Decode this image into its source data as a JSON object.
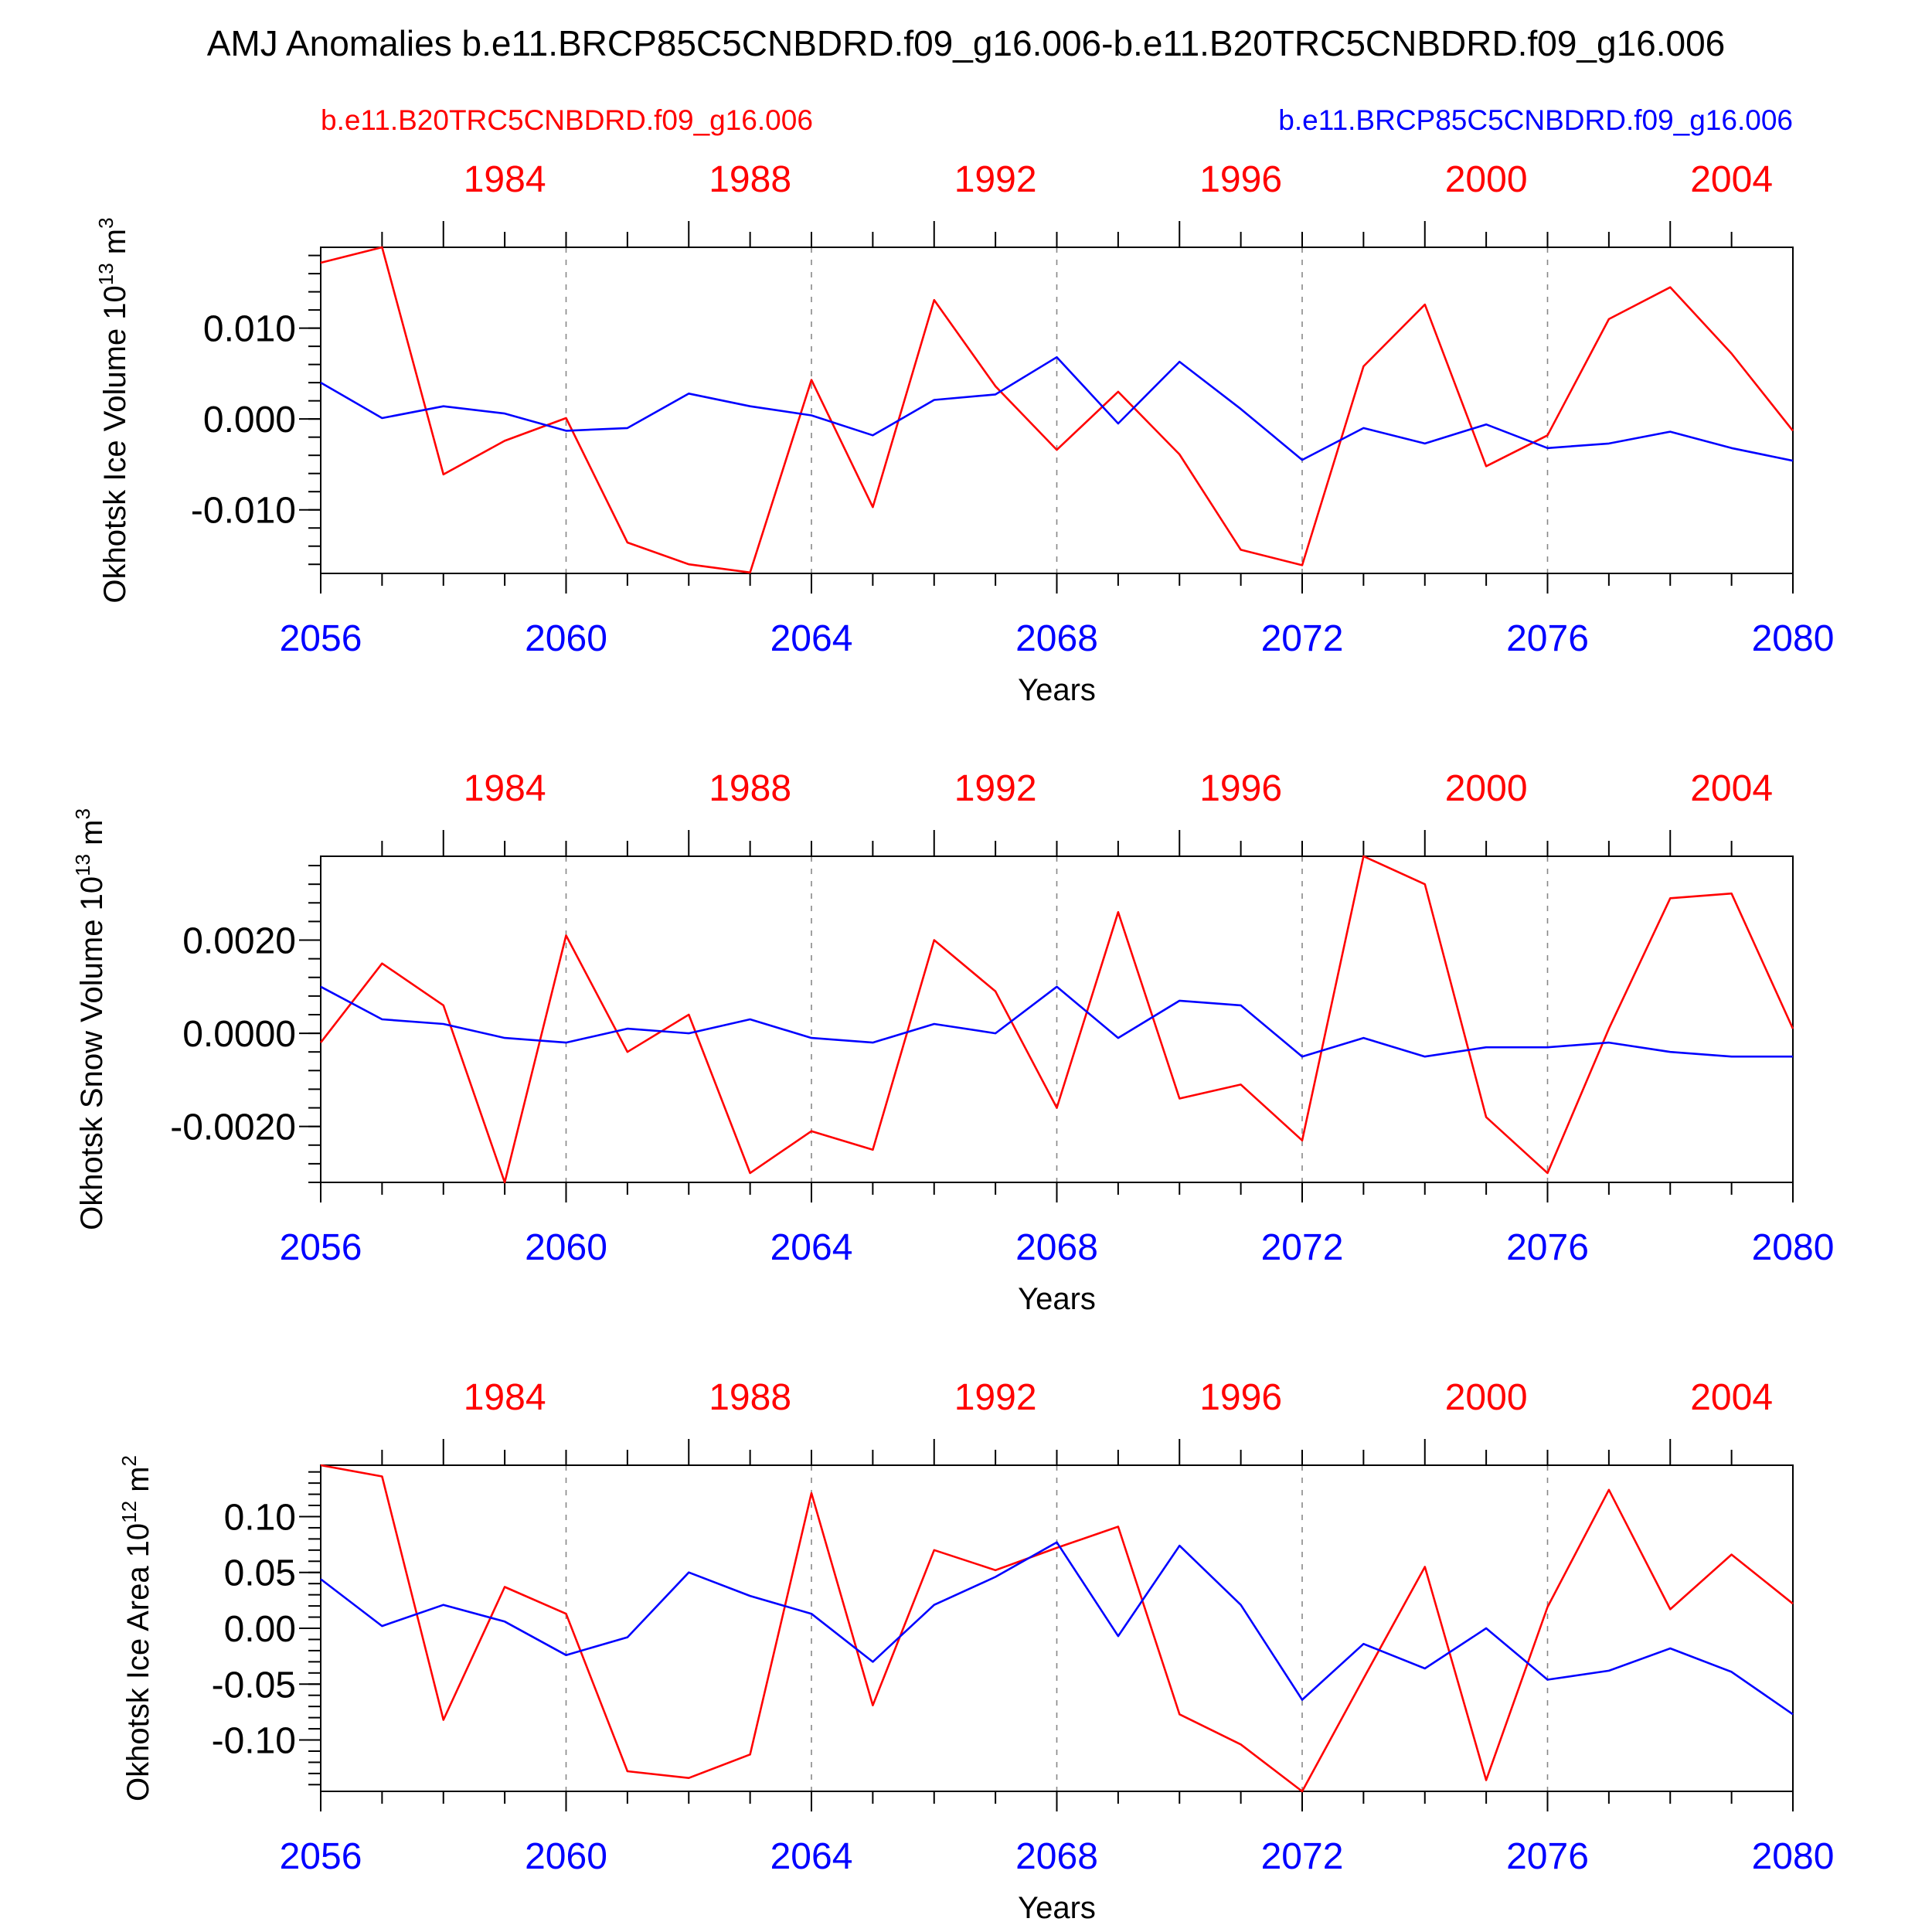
{
  "title": "AMJ Anomalies b.e11.BRCP85C5CNBDRD.f09_g16.006-b.e11.B20TRC5CNBDRD.f09_g16.006",
  "legend": {
    "left": "b.e11.B20TRC5CNBDRD.f09_g16.006",
    "right": "b.e11.BRCP85C5CNBDRD.f09_g16.006"
  },
  "colors": {
    "historical": "#ff0000",
    "future": "#0000ff",
    "text": "#000000",
    "grid": "#888888"
  },
  "chart_data": [
    {
      "type": "line",
      "ylabel": "Okhotsk Ice Volume 10",
      "ylabel_exp": "13",
      "ylabel_unit": " m",
      "ylabel_unit_exp": "3",
      "xlabel": "Years",
      "xlim": [
        2056,
        2080
      ],
      "ylim": [
        -0.017,
        0.0189
      ],
      "yticks": [
        -0.01,
        0.0,
        0.01
      ],
      "ytick_labels": [
        "-0.010",
        "0.000",
        "0.010"
      ],
      "minor_step": 0.002,
      "bottom_ticks": [
        "2056",
        "2060",
        "2064",
        "2068",
        "2072",
        "2076",
        "2080"
      ],
      "top_ticks": [
        "1984",
        "1988",
        "1992",
        "1996",
        "2000",
        "2004"
      ],
      "x": [
        2056,
        2057,
        2058,
        2059,
        2060,
        2061,
        2062,
        2063,
        2064,
        2065,
        2066,
        2067,
        2068,
        2069,
        2070,
        2071,
        2072,
        2073,
        2074,
        2075,
        2076,
        2077,
        2078,
        2079,
        2080
      ],
      "series": [
        {
          "name": "b.e11.B20TRC5CNBDRD.f09_g16.006",
          "color": "#ff0000",
          "values": [
            0.0172,
            0.0189,
            -0.0061,
            -0.0024,
            0.0001,
            -0.0136,
            -0.016,
            -0.0169,
            0.0043,
            -0.0097,
            0.0131,
            0.0036,
            -0.0034,
            0.003,
            -0.0039,
            -0.0144,
            -0.0161,
            0.0058,
            0.0126,
            -0.0052,
            -0.0018,
            0.011,
            0.0145,
            0.0072,
            -0.0013
          ]
        },
        {
          "name": "b.e11.BRCP85C5CNBDRD.f09_g16.006",
          "color": "#0000ff",
          "values": [
            0.004,
            0.0001,
            0.0014,
            0.0006,
            -0.0013,
            -0.001,
            0.0028,
            0.0014,
            0.0004,
            -0.0018,
            0.0021,
            0.0027,
            0.0068,
            -0.0005,
            0.0063,
            0.0011,
            -0.0045,
            -0.001,
            -0.0027,
            -0.0006,
            -0.0032,
            -0.0027,
            -0.0014,
            -0.0032,
            -0.0046
          ]
        }
      ]
    },
    {
      "type": "line",
      "ylabel": "Okhotsk Snow Volume 10",
      "ylabel_exp": "13",
      "ylabel_unit": " m",
      "ylabel_unit_exp": "3",
      "xlabel": "Years",
      "xlim": [
        2056,
        2080
      ],
      "ylim": [
        -0.0032,
        0.0038
      ],
      "yticks": [
        -0.002,
        0.0,
        0.002
      ],
      "ytick_labels": [
        "-0.0020",
        "0.0000",
        "0.0020"
      ],
      "minor_step": 0.0004,
      "bottom_ticks": [
        "2056",
        "2060",
        "2064",
        "2068",
        "2072",
        "2076",
        "2080"
      ],
      "top_ticks": [
        "1984",
        "1988",
        "1992",
        "1996",
        "2000",
        "2004"
      ],
      "x": [
        2056,
        2057,
        2058,
        2059,
        2060,
        2061,
        2062,
        2063,
        2064,
        2065,
        2066,
        2067,
        2068,
        2069,
        2070,
        2071,
        2072,
        2073,
        2074,
        2075,
        2076,
        2077,
        2078,
        2079,
        2080
      ],
      "series": [
        {
          "name": "b.e11.B20TRC5CNBDRD.f09_g16.006",
          "color": "#ff0000",
          "values": [
            -0.0002,
            0.0015,
            0.0006,
            -0.0032,
            0.0021,
            -0.0004,
            0.0004,
            -0.003,
            -0.0021,
            -0.0025,
            0.002,
            0.0009,
            -0.0016,
            0.0026,
            -0.0014,
            -0.0011,
            -0.0023,
            0.0038,
            0.0032,
            -0.0018,
            -0.003,
            0.0001,
            0.0029,
            0.003,
            0.0001
          ]
        },
        {
          "name": "b.e11.BRCP85C5CNBDRD.f09_g16.006",
          "color": "#0000ff",
          "values": [
            0.001,
            0.0003,
            0.0002,
            -0.0001,
            -0.0002,
            0.0001,
            0.0,
            0.0003,
            -0.0001,
            -0.0002,
            0.0002,
            0.0,
            0.001,
            -0.0001,
            0.0007,
            0.0006,
            -0.0005,
            -0.0001,
            -0.0005,
            -0.0003,
            -0.0003,
            -0.0002,
            -0.0004,
            -0.0005,
            -0.0005
          ]
        }
      ]
    },
    {
      "type": "line",
      "ylabel": "Okhotsk Ice Area 10",
      "ylabel_exp": "12",
      "ylabel_unit": " m",
      "ylabel_unit_exp": "2",
      "xlabel": "Years",
      "xlim": [
        2056,
        2080
      ],
      "ylim": [
        -0.146,
        0.146
      ],
      "yticks": [
        -0.1,
        -0.05,
        0.0,
        0.05,
        0.1
      ],
      "ytick_labels": [
        "-0.10",
        "-0.05",
        "0.00",
        "0.05",
        "0.10"
      ],
      "minor_step": 0.01,
      "bottom_ticks": [
        "2056",
        "2060",
        "2064",
        "2068",
        "2072",
        "2076",
        "2080"
      ],
      "top_ticks": [
        "1984",
        "1988",
        "1992",
        "1996",
        "2000",
        "2004"
      ],
      "x": [
        2056,
        2057,
        2058,
        2059,
        2060,
        2061,
        2062,
        2063,
        2064,
        2065,
        2066,
        2067,
        2068,
        2069,
        2070,
        2071,
        2072,
        2073,
        2074,
        2075,
        2076,
        2077,
        2078,
        2079,
        2080
      ],
      "series": [
        {
          "name": "b.e11.B20TRC5CNBDRD.f09_g16.006",
          "color": "#ff0000",
          "values": [
            0.146,
            0.136,
            -0.082,
            0.037,
            0.013,
            -0.128,
            -0.134,
            -0.113,
            0.121,
            -0.069,
            0.07,
            0.052,
            0.072,
            0.091,
            -0.077,
            -0.104,
            -0.146,
            -0.045,
            0.055,
            -0.136,
            0.019,
            0.124,
            0.017,
            0.066,
            0.022
          ]
        },
        {
          "name": "b.e11.BRCP85C5CNBDRD.f09_g16.006",
          "color": "#0000ff",
          "values": [
            0.044,
            0.002,
            0.021,
            0.006,
            -0.024,
            -0.008,
            0.05,
            0.029,
            0.013,
            -0.03,
            0.021,
            0.046,
            0.077,
            -0.007,
            0.074,
            0.021,
            -0.064,
            -0.014,
            -0.036,
            0.0,
            -0.046,
            -0.038,
            -0.018,
            -0.039,
            -0.077
          ]
        }
      ]
    }
  ]
}
